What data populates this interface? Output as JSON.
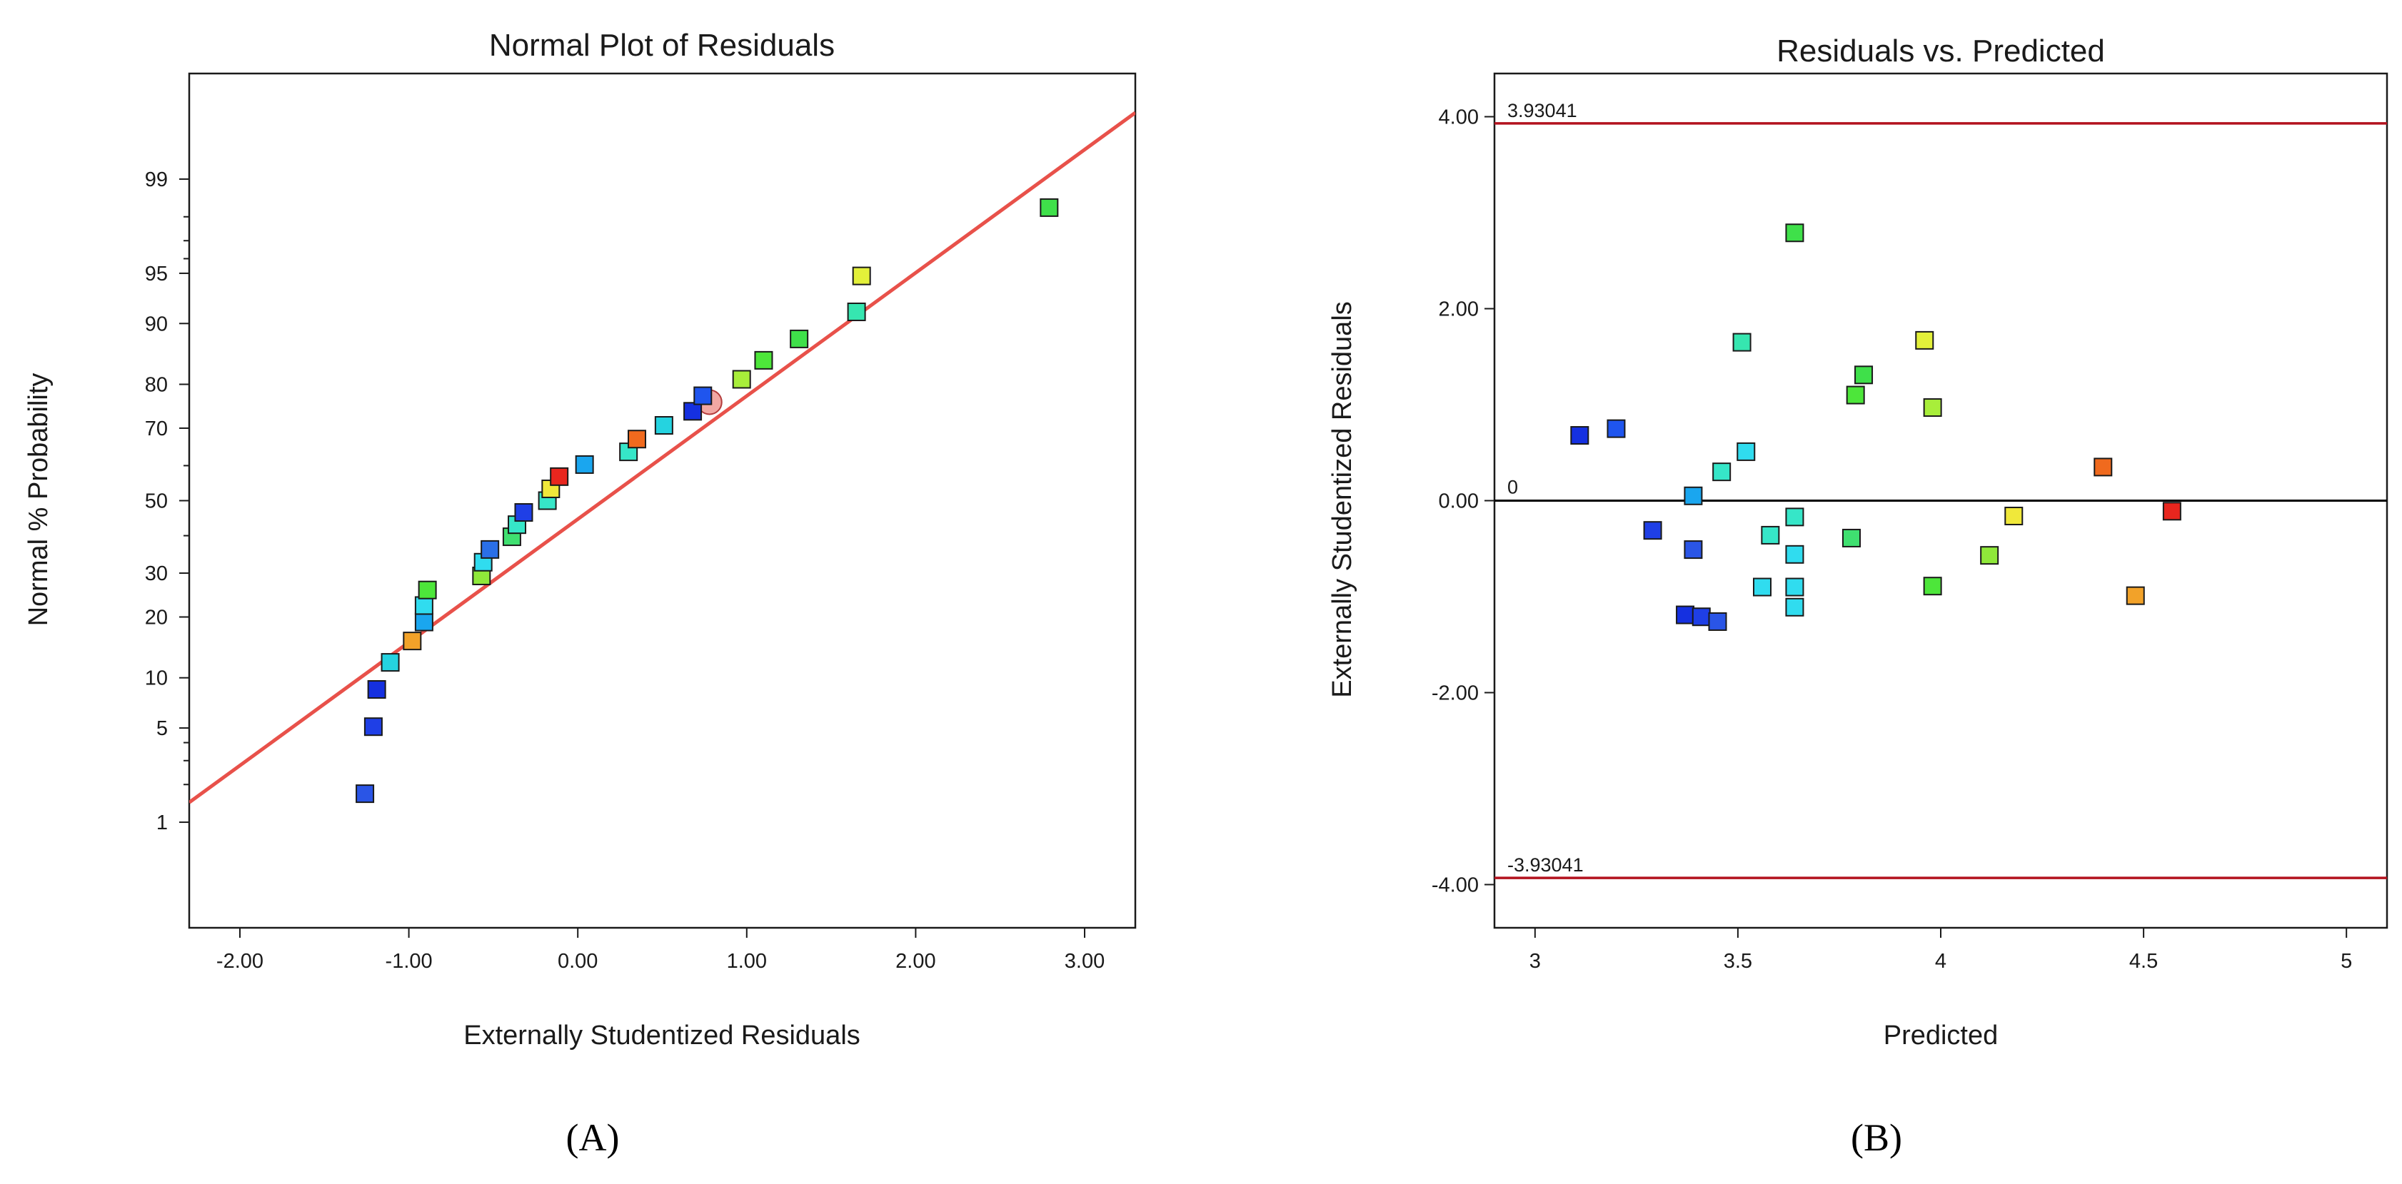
{
  "chart_data": [
    {
      "panel_label": "(A)",
      "type": "scatter",
      "title": "Normal Plot of Residuals",
      "xlabel": "Externally Studentized Residuals",
      "ylabel": "Normal % Probability",
      "xlim": [
        -2.3,
        3.3
      ],
      "ylim_percent": [
        0.1,
        99.9
      ],
      "y_scale": "normal-probability",
      "x_ticks": [
        -2,
        -1,
        0,
        1,
        2,
        3
      ],
      "x_tick_labels": [
        "-2.00",
        "-1.00",
        "0.00",
        "1.00",
        "2.00",
        "3.00"
      ],
      "y_ticks": [
        1,
        5,
        10,
        20,
        30,
        50,
        70,
        80,
        90,
        95,
        99
      ],
      "y_tick_labels": [
        "1",
        "5",
        "10",
        "20",
        "30",
        "50",
        "70",
        "80",
        "90",
        "95",
        "99"
      ],
      "reference_line": {
        "color": "#e8514a",
        "through": [
          [
            -2.3,
            1.45
          ],
          [
            3.3,
            99.75
          ]
        ]
      },
      "points": [
        {
          "x": -1.26,
          "y": 1.7,
          "c": "#2a55e6"
        },
        {
          "x": -1.21,
          "y": 5.1,
          "c": "#1f3fe6"
        },
        {
          "x": -1.19,
          "y": 8.6,
          "c": "#1530e0"
        },
        {
          "x": -1.11,
          "y": 12.1,
          "c": "#25d3e0"
        },
        {
          "x": -0.98,
          "y": 15.5,
          "c": "#f2a229"
        },
        {
          "x": -0.91,
          "y": 19.0,
          "c": "#1aa6ef"
        },
        {
          "x": -0.91,
          "y": 22.4,
          "c": "#30dcef"
        },
        {
          "x": -0.89,
          "y": 25.9,
          "c": "#4de63a"
        },
        {
          "x": -0.57,
          "y": 29.3,
          "c": "#8fe83a"
        },
        {
          "x": -0.56,
          "y": 32.8,
          "c": "#30dcef"
        },
        {
          "x": -0.52,
          "y": 36.2,
          "c": "#2a6fe8"
        },
        {
          "x": -0.39,
          "y": 39.7,
          "c": "#3fe070"
        },
        {
          "x": -0.36,
          "y": 43.1,
          "c": "#36e6c8"
        },
        {
          "x": -0.32,
          "y": 46.6,
          "c": "#1f3fe6"
        },
        {
          "x": -0.18,
          "y": 50.0,
          "c": "#36e6c8"
        },
        {
          "x": -0.16,
          "y": 53.4,
          "c": "#f0e83a"
        },
        {
          "x": -0.11,
          "y": 56.9,
          "c": "#e8261e"
        },
        {
          "x": 0.04,
          "y": 60.3,
          "c": "#1aa6ef"
        },
        {
          "x": 0.3,
          "y": 63.8,
          "c": "#36e6c8"
        },
        {
          "x": 0.35,
          "y": 67.2,
          "c": "#f06a1e"
        },
        {
          "x": 0.51,
          "y": 70.7,
          "c": "#25d3e0"
        },
        {
          "x": 0.68,
          "y": 74.1,
          "c": "#1530e0"
        },
        {
          "x": 0.74,
          "y": 77.6,
          "c": "#1f55ee"
        },
        {
          "x": 0.97,
          "y": 81.0,
          "c": "#a8ee3a"
        },
        {
          "x": 1.1,
          "y": 84.5,
          "c": "#4de63a"
        },
        {
          "x": 1.31,
          "y": 87.9,
          "c": "#3fe04a"
        },
        {
          "x": 1.65,
          "y": 91.4,
          "c": "#36e6b0"
        },
        {
          "x": 1.68,
          "y": 94.8,
          "c": "#e3f03a"
        },
        {
          "x": 2.79,
          "y": 98.3,
          "c": "#3fe04a"
        }
      ]
    },
    {
      "panel_label": "(B)",
      "type": "scatter",
      "title": "Residuals vs. Predicted",
      "xlabel": "Predicted",
      "ylabel": "Externally Studentized Residuals",
      "xlim": [
        2.9,
        5.1
      ],
      "ylim": [
        -4.45,
        4.45
      ],
      "x_ticks": [
        3,
        3.5,
        4,
        4.5,
        5
      ],
      "x_tick_labels": [
        "3",
        "3.5",
        "4",
        "4.5",
        "5"
      ],
      "y_ticks": [
        4,
        2,
        0,
        -2,
        -4
      ],
      "y_tick_labels": [
        "4.00",
        "2.00",
        "0.00",
        "-2.00",
        "-4.00"
      ],
      "limit_lines": [
        {
          "value": 3.93041,
          "label": "3.93041",
          "color": "#b3121e"
        },
        {
          "value": -3.93041,
          "label": "-3.93041",
          "color": "#b3121e"
        }
      ],
      "zero_line": {
        "value": 0,
        "label": "0",
        "color": "#000000"
      },
      "points": [
        {
          "x": 3.11,
          "y": 0.68,
          "c": "#1530e0"
        },
        {
          "x": 3.2,
          "y": 0.75,
          "c": "#1f55ee"
        },
        {
          "x": 3.29,
          "y": -0.31,
          "c": "#1f3fe6"
        },
        {
          "x": 3.37,
          "y": -1.19,
          "c": "#1530e0"
        },
        {
          "x": 3.39,
          "y": 0.05,
          "c": "#1aa6ef"
        },
        {
          "x": 3.39,
          "y": -0.51,
          "c": "#2a55e6"
        },
        {
          "x": 3.41,
          "y": -1.21,
          "c": "#1f3fe6"
        },
        {
          "x": 3.45,
          "y": -1.26,
          "c": "#2a55e6"
        },
        {
          "x": 3.46,
          "y": 0.3,
          "c": "#36e6c8"
        },
        {
          "x": 3.51,
          "y": 1.65,
          "c": "#36e6b0"
        },
        {
          "x": 3.52,
          "y": 0.51,
          "c": "#30dcef"
        },
        {
          "x": 3.56,
          "y": -0.9,
          "c": "#30dcef"
        },
        {
          "x": 3.58,
          "y": -0.36,
          "c": "#36e6c8"
        },
        {
          "x": 3.64,
          "y": 2.79,
          "c": "#3fe04a"
        },
        {
          "x": 3.64,
          "y": -0.17,
          "c": "#36e6c8"
        },
        {
          "x": 3.64,
          "y": -0.56,
          "c": "#30dcef"
        },
        {
          "x": 3.64,
          "y": -0.9,
          "c": "#30dcef"
        },
        {
          "x": 3.64,
          "y": -1.11,
          "c": "#30dcef"
        },
        {
          "x": 3.78,
          "y": -0.39,
          "c": "#3fe070"
        },
        {
          "x": 3.79,
          "y": 1.1,
          "c": "#4de63a"
        },
        {
          "x": 3.81,
          "y": 1.31,
          "c": "#3fe04a"
        },
        {
          "x": 3.96,
          "y": 1.67,
          "c": "#e3f03a"
        },
        {
          "x": 3.98,
          "y": 0.97,
          "c": "#a8ee3a"
        },
        {
          "x": 3.98,
          "y": -0.89,
          "c": "#4de63a"
        },
        {
          "x": 4.12,
          "y": -0.57,
          "c": "#8fe83a"
        },
        {
          "x": 4.18,
          "y": -0.16,
          "c": "#f0e83a"
        },
        {
          "x": 4.4,
          "y": 0.35,
          "c": "#f06a1e"
        },
        {
          "x": 4.48,
          "y": -0.99,
          "c": "#f2a229"
        },
        {
          "x": 4.57,
          "y": -0.11,
          "c": "#e8261e"
        }
      ]
    }
  ]
}
